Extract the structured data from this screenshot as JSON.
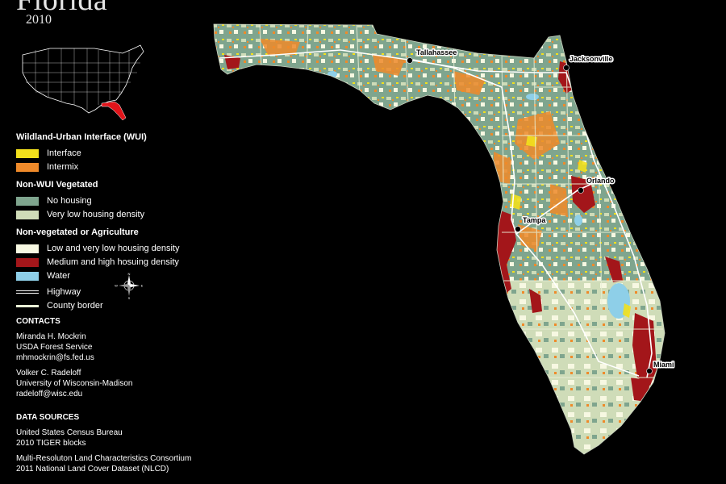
{
  "header": {
    "title": "Florida",
    "year": "2010"
  },
  "legend": {
    "wui": {
      "heading": "Wildland-Urban Interface (WUI)",
      "items": [
        {
          "label": "Interface",
          "color": "#f2e01c"
        },
        {
          "label": "Intermix",
          "color": "#ef8a2a"
        }
      ]
    },
    "non_wui": {
      "heading": "Non-WUI Vegetated",
      "items": [
        {
          "label": "No housing",
          "color": "#7fa58e"
        },
        {
          "label": "Very low housing density",
          "color": "#cfdcb8"
        }
      ]
    },
    "non_veg": {
      "heading": "Non-vegetated or Agriculture",
      "items": [
        {
          "label": "Low and very low housing density",
          "color": "#f7f8e2"
        },
        {
          "label": "Medium and high hosuing density",
          "color": "#a3161a"
        },
        {
          "label": "Water",
          "color": "#8ecfe8"
        }
      ]
    },
    "lines": {
      "highway": "Highway",
      "county_border": "County border"
    }
  },
  "compass": {
    "n": "N",
    "s": "S",
    "e": "E",
    "w": "W"
  },
  "contacts": {
    "heading": "CONTACTS",
    "people": [
      {
        "name": "Miranda H. Mockrin",
        "org": "USDA Forest Service",
        "email": "mhmockrin@fs.fed.us"
      },
      {
        "name": "Volker C. Radeloff",
        "org": "University of Wisconsin-Madison",
        "email": "radeloff@wisc.edu"
      }
    ]
  },
  "data_sources": {
    "heading": "DATA SOURCES",
    "entries": [
      {
        "line1": "United States Census Bureau",
        "line2": "2010 TIGER blocks"
      },
      {
        "line1": "Multi-Resoluton Land Characteristics Consortium",
        "line2": "2011 National Land Cover Dataset (NLCD)"
      }
    ]
  },
  "cities": {
    "tallahassee": "Tallahassee",
    "jacksonville": "Jacksonville",
    "orlando": "Orlando",
    "tampa": "Tampa",
    "miami": "Miami"
  },
  "colors": {
    "background": "#000000",
    "inset_highlight": "#e0141a"
  }
}
